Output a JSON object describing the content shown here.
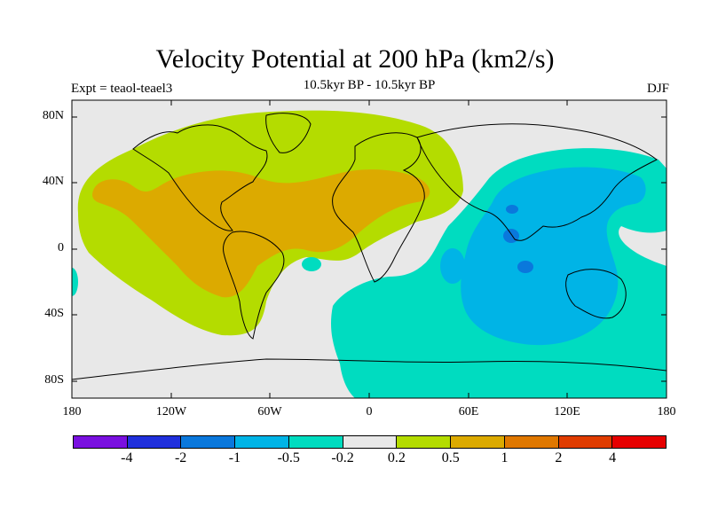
{
  "title": "Velocity Potential at 200 hPa (km2/s)",
  "subtitle": "10.5kyr BP - 10.5kyr BP",
  "experiment": "Expt = teaol-teael3",
  "season": "DJF",
  "map": {
    "lon_range": [
      -180,
      180
    ],
    "lat_range": [
      -90,
      90
    ],
    "lat_labels": [
      "80N",
      "40N",
      "0",
      "40S",
      "80S"
    ],
    "lon_labels": [
      "180",
      "120W",
      "60W",
      "0",
      "60E",
      "120E",
      "180"
    ]
  },
  "legend": {
    "colors": [
      "#7a10e0",
      "#2030dc",
      "#0a78dc",
      "#00b4e6",
      "#00dcc0",
      "#e8e8e8",
      "#b4dc00",
      "#dcaa00",
      "#e07800",
      "#e03c00",
      "#e60000"
    ],
    "labels": [
      "-4",
      "-2",
      "-1",
      "-0.5",
      "-0.2",
      "0.2",
      "0.5",
      "1",
      "2",
      "4"
    ]
  }
}
